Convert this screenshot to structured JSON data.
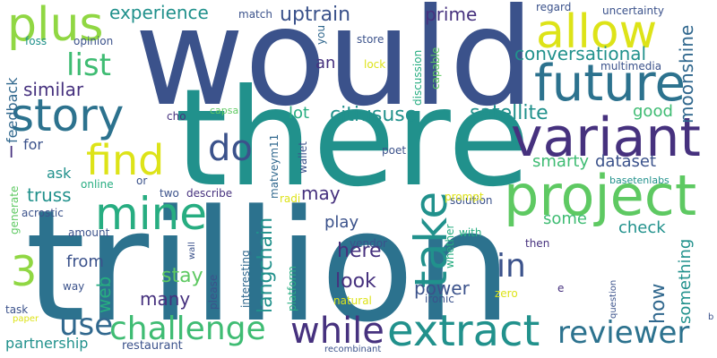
{
  "colors": {
    "purple": "#46317e",
    "indigo": "#3b528b",
    "steel": "#31688e",
    "blue": "#2c728e",
    "teal": "#21918c",
    "sea": "#27ad81",
    "green": "#3fbc73",
    "lime": "#5ec962",
    "chartreuse": "#90d743",
    "yellow": "#dde318"
  },
  "words": [
    {
      "text": "would",
      "color": "indigo"
    },
    {
      "text": "there",
      "color": "teal"
    },
    {
      "text": "trillion",
      "color": "blue"
    },
    {
      "text": "project",
      "color": "lime"
    },
    {
      "text": "variant",
      "color": "purple"
    },
    {
      "text": "future",
      "color": "blue"
    },
    {
      "text": "allow",
      "color": "yellow"
    },
    {
      "text": "plus",
      "color": "chartreuse"
    },
    {
      "text": "story",
      "color": "blue"
    },
    {
      "text": "mine",
      "color": "sea"
    },
    {
      "text": "find",
      "color": "yellow"
    },
    {
      "text": "do",
      "color": "indigo"
    },
    {
      "text": "take",
      "color": "teal"
    },
    {
      "text": "extract",
      "color": "teal"
    },
    {
      "text": "reviewer",
      "color": "blue"
    },
    {
      "text": "challenge",
      "color": "green"
    },
    {
      "text": "while",
      "color": "purple"
    },
    {
      "text": "3",
      "color": "chartreuse"
    },
    {
      "text": "use",
      "color": "steel"
    },
    {
      "text": "list",
      "color": "green"
    },
    {
      "text": "in",
      "color": "indigo"
    },
    {
      "text": "uptrain",
      "color": "indigo"
    },
    {
      "text": "experience",
      "color": "teal"
    },
    {
      "text": "similar",
      "color": "purple"
    },
    {
      "text": "conversational",
      "color": "teal"
    },
    {
      "text": "citiususc",
      "color": "teal"
    },
    {
      "text": "satellite",
      "color": "teal"
    },
    {
      "text": "moonshine",
      "color": "steel"
    },
    {
      "text": "prime",
      "color": "purple"
    },
    {
      "text": "langchain",
      "color": "teal"
    },
    {
      "text": "here",
      "color": "purple"
    },
    {
      "text": "look",
      "color": "purple"
    },
    {
      "text": "power",
      "color": "indigo"
    },
    {
      "text": "how",
      "color": "steel"
    },
    {
      "text": "truss",
      "color": "teal"
    },
    {
      "text": "smarty",
      "color": "green"
    },
    {
      "text": "dataset",
      "color": "indigo"
    },
    {
      "text": "check",
      "color": "teal"
    },
    {
      "text": "some",
      "color": "green"
    },
    {
      "text": "something",
      "color": "teal"
    },
    {
      "text": "may",
      "color": "purple"
    },
    {
      "text": "play",
      "color": "indigo"
    },
    {
      "text": "stay",
      "color": "lime"
    },
    {
      "text": "many",
      "color": "purple"
    },
    {
      "text": "from",
      "color": "indigo"
    },
    {
      "text": "web",
      "color": "sea"
    },
    {
      "text": "good",
      "color": "green"
    },
    {
      "text": "lot",
      "color": "sea"
    },
    {
      "text": "an",
      "color": "purple"
    },
    {
      "text": "feedback",
      "color": "steel"
    },
    {
      "text": "ask",
      "color": "teal"
    },
    {
      "text": "for",
      "color": "indigo"
    },
    {
      "text": "I",
      "color": "purple"
    },
    {
      "text": "partnership",
      "color": "teal"
    },
    {
      "text": "restaurant",
      "color": "indigo"
    },
    {
      "text": "task",
      "color": "indigo"
    },
    {
      "text": "way",
      "color": "indigo"
    },
    {
      "text": "amount",
      "color": "indigo"
    },
    {
      "text": "acrostic",
      "color": "indigo"
    },
    {
      "text": "online",
      "color": "sea"
    },
    {
      "text": "two",
      "color": "indigo"
    },
    {
      "text": "describe",
      "color": "purple"
    },
    {
      "text": "or",
      "color": "indigo"
    },
    {
      "text": "radi",
      "color": "yellow"
    },
    {
      "text": "matveym11",
      "color": "steel"
    },
    {
      "text": "wallet",
      "color": "indigo"
    },
    {
      "text": "cho",
      "color": "purple"
    },
    {
      "text": "capsa",
      "color": "lime"
    },
    {
      "text": "poet",
      "color": "indigo"
    },
    {
      "text": "solution",
      "color": "indigo"
    },
    {
      "text": "basetenlabs",
      "color": "teal"
    },
    {
      "text": "prompt",
      "color": "yellow"
    },
    {
      "text": "vendor",
      "color": "indigo"
    },
    {
      "text": "with",
      "color": "sea"
    },
    {
      "text": "whether",
      "color": "sea"
    },
    {
      "text": "then",
      "color": "purple"
    },
    {
      "text": "zero",
      "color": "yellow"
    },
    {
      "text": "e",
      "color": "purple"
    },
    {
      "text": "question",
      "color": "indigo"
    },
    {
      "text": "b",
      "color": "indigo"
    },
    {
      "text": "ironic",
      "color": "indigo"
    },
    {
      "text": "natural",
      "color": "yellow"
    },
    {
      "text": "platform",
      "color": "sea"
    },
    {
      "text": "interesting",
      "color": "steel"
    },
    {
      "text": "please",
      "color": "indigo"
    },
    {
      "text": "wall",
      "color": "indigo"
    },
    {
      "text": "recombinant",
      "color": "indigo"
    },
    {
      "text": "paper",
      "color": "yellow"
    },
    {
      "text": "generate",
      "color": "lime"
    },
    {
      "text": "foss",
      "color": "teal"
    },
    {
      "text": "opinion",
      "color": "indigo"
    },
    {
      "text": "match",
      "color": "indigo"
    },
    {
      "text": "you",
      "color": "steel"
    },
    {
      "text": "store",
      "color": "indigo"
    },
    {
      "text": "lock",
      "color": "yellow"
    },
    {
      "text": "discussion",
      "color": "sea"
    },
    {
      "text": "capable",
      "color": "lime"
    },
    {
      "text": "regard",
      "color": "indigo"
    },
    {
      "text": "uncertainty",
      "color": "indigo"
    },
    {
      "text": "multimedia",
      "color": "indigo"
    }
  ]
}
